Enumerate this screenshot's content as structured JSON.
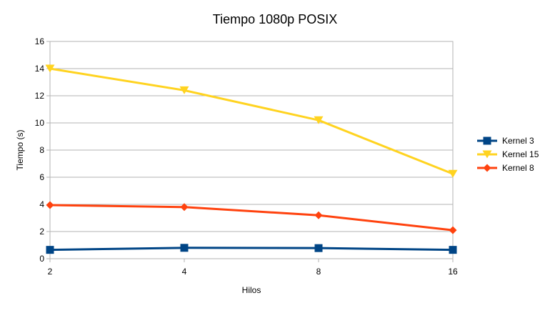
{
  "chart_data": {
    "type": "line",
    "title": "Tiempo 1080p POSIX",
    "xlabel": "Hilos",
    "ylabel": "Tiempo (s)",
    "categories": [
      "2",
      "4",
      "8",
      "16"
    ],
    "ylim": [
      0,
      16
    ],
    "yticks": [
      "0",
      "2",
      "4",
      "6",
      "8",
      "10",
      "12",
      "14",
      "16"
    ],
    "grid": true,
    "legend_position": "right",
    "series": [
      {
        "name": "Kernel 3",
        "values": [
          0.65,
          0.8,
          0.78,
          0.65
        ],
        "color": "#004586",
        "marker": "square"
      },
      {
        "name": "Kernel 15",
        "values": [
          14.0,
          12.4,
          10.2,
          6.25
        ],
        "color": "#ffd320",
        "marker": "triangle-down"
      },
      {
        "name": "Kernel 8",
        "values": [
          3.95,
          3.8,
          3.2,
          2.1
        ],
        "color": "#ff420e",
        "marker": "diamond"
      }
    ]
  }
}
